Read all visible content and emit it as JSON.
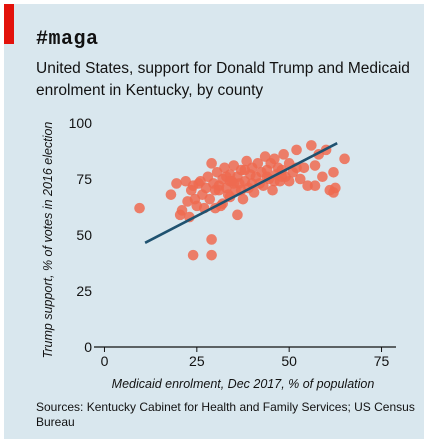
{
  "title": "#maga",
  "subtitle": "United States, support for Donald Trump and Medicaid enrolment in Kentucky, by county",
  "source": "Sources: Kentucky Cabinet for Health and Family Services; US Census Bureau",
  "colors": {
    "background": "#d9e7ee",
    "accent": "#e3120b",
    "points": "#ee6a50",
    "trendline": "#1f5270"
  },
  "chart_data": {
    "type": "scatter",
    "xlabel": "Medicaid enrolment, Dec 2017, % of population",
    "ylabel": "Trump support, % of votes in 2016 election",
    "xlim": [
      -5,
      80
    ],
    "ylim": [
      0,
      100
    ],
    "x_ticks": [
      0,
      25,
      50,
      75
    ],
    "y_ticks": [
      0,
      25,
      50,
      75,
      100
    ],
    "grid": false,
    "trendline": {
      "x": [
        11,
        63
      ],
      "y": [
        46.5,
        91
      ]
    },
    "points": [
      [
        9.5,
        62
      ],
      [
        18,
        68
      ],
      [
        19.5,
        73
      ],
      [
        20.5,
        59
      ],
      [
        21,
        61
      ],
      [
        22,
        74
      ],
      [
        22.5,
        65
      ],
      [
        23,
        58
      ],
      [
        23.5,
        70
      ],
      [
        24,
        72
      ],
      [
        24.5,
        66
      ],
      [
        25,
        63
      ],
      [
        25.5,
        73
      ],
      [
        26,
        74
      ],
      [
        26.5,
        68
      ],
      [
        27,
        62
      ],
      [
        27.5,
        71
      ],
      [
        28,
        76
      ],
      [
        28.5,
        66
      ],
      [
        29,
        82
      ],
      [
        29.5,
        73
      ],
      [
        30,
        70
      ],
      [
        30.5,
        78
      ],
      [
        31,
        72
      ],
      [
        31.5,
        63
      ],
      [
        32,
        75
      ],
      [
        32.5,
        80
      ],
      [
        33,
        71
      ],
      [
        33.5,
        68
      ],
      [
        34,
        77
      ],
      [
        34.5,
        74
      ],
      [
        35,
        81
      ],
      [
        35.5,
        70
      ],
      [
        36,
        76
      ],
      [
        36.5,
        73
      ],
      [
        37,
        79
      ],
      [
        37.5,
        66
      ],
      [
        38,
        74
      ],
      [
        38.5,
        83
      ],
      [
        39,
        71
      ],
      [
        39.5,
        77
      ],
      [
        40,
        80
      ],
      [
        40.5,
        69
      ],
      [
        41,
        76
      ],
      [
        41.5,
        82
      ],
      [
        42,
        73
      ],
      [
        42.5,
        78
      ],
      [
        43,
        72
      ],
      [
        43.5,
        85
      ],
      [
        44,
        79
      ],
      [
        44.5,
        75
      ],
      [
        45,
        82
      ],
      [
        45.5,
        70
      ],
      [
        46,
        84
      ],
      [
        46.5,
        77
      ],
      [
        47,
        80
      ],
      [
        47.5,
        74
      ],
      [
        48,
        79
      ],
      [
        48.5,
        86
      ],
      [
        49,
        76
      ],
      [
        50,
        82
      ],
      [
        51,
        78
      ],
      [
        52,
        88
      ],
      [
        53,
        75
      ],
      [
        54,
        80
      ],
      [
        55,
        72
      ],
      [
        56,
        90
      ],
      [
        57,
        81
      ],
      [
        58,
        86
      ],
      [
        59,
        76
      ],
      [
        60,
        88
      ],
      [
        61,
        70
      ],
      [
        62,
        78
      ],
      [
        62.5,
        71
      ],
      [
        65,
        84
      ],
      [
        30,
        62
      ],
      [
        32,
        64
      ],
      [
        34,
        67
      ],
      [
        36,
        59
      ],
      [
        37,
        70
      ],
      [
        31,
        70
      ],
      [
        33,
        76
      ],
      [
        35,
        73
      ],
      [
        38,
        79
      ],
      [
        40,
        73
      ],
      [
        44,
        76
      ],
      [
        46,
        74
      ],
      [
        48,
        76
      ],
      [
        50,
        74
      ],
      [
        52,
        80
      ],
      [
        57,
        72
      ],
      [
        24,
        41
      ],
      [
        29,
        41
      ],
      [
        29,
        48
      ],
      [
        62,
        69
      ],
      [
        34,
        74
      ]
    ]
  }
}
